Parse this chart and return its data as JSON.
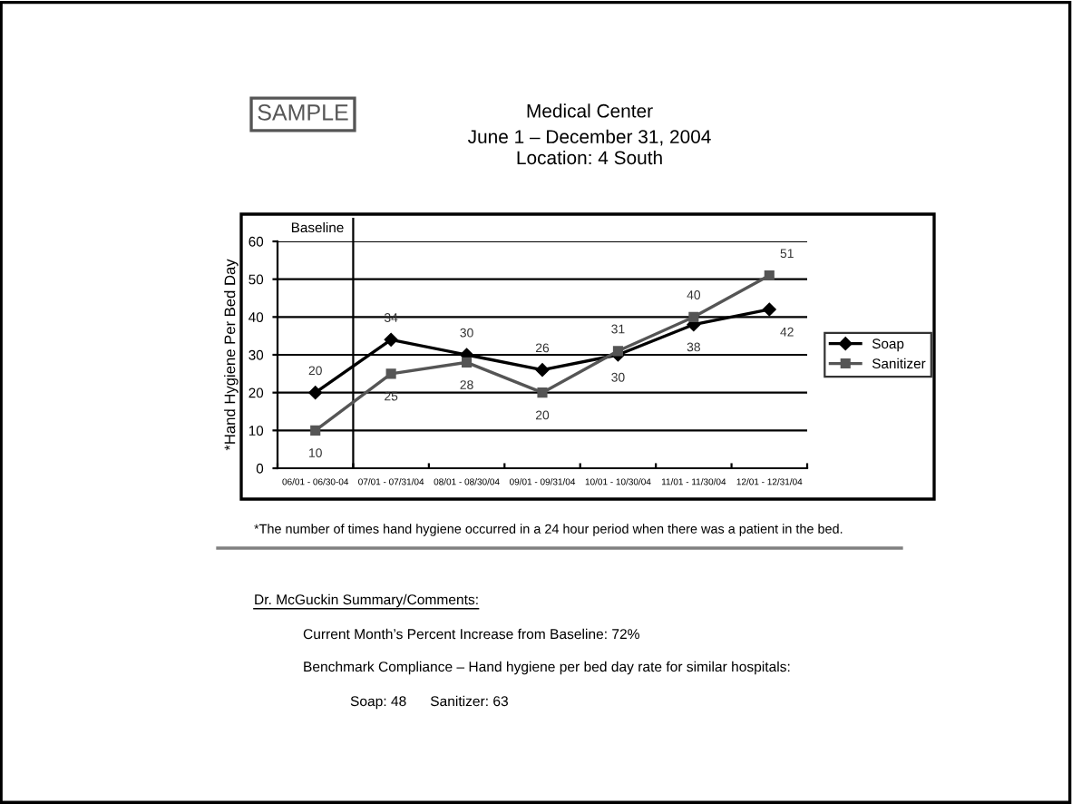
{
  "chart_data": {
    "type": "line",
    "title": "Medical Center",
    "subtitle": "June 1 – December 31, 2004\nLocation: 4 South",
    "ylabel": "*Hand Hygiene Per Bed Day",
    "categories": [
      "06/01 - 06/30-04",
      "07/01 - 07/31/04",
      "08/01 - 08/30/04",
      "09/01 - 09/31/04",
      "10/01 - 10/30/04",
      "11/01 - 11/30/04",
      "12/01 - 12/31/04"
    ],
    "series": [
      {
        "name": "Soap",
        "color": "#000000",
        "marker": "diamond",
        "values": [
          20,
          34,
          30,
          26,
          30,
          38,
          42
        ]
      },
      {
        "name": "Sanitizer",
        "color": "#555555",
        "marker": "square",
        "values": [
          10,
          25,
          28,
          20,
          31,
          40,
          51
        ]
      }
    ],
    "ylim": [
      0,
      60
    ],
    "yticks": [
      0,
      10,
      20,
      30,
      40,
      50,
      60
    ],
    "grid": "y",
    "legend": "right",
    "data_labels": true,
    "line_style": "solid",
    "annotations": [
      "Baseline",
      "SAMPLE",
      "*The number of times hand hygiene occurred in a 24 hour period when there was a patient in the bed.",
      "Dr. McGuckin Summary/Comments:",
      "Current Month’s Percent Increase from Baseline: 72%",
      "Benchmark Compliance – Hand hygiene per bed day rate for similar hospitals:",
      "Soap: 48      Sanitizer: 63"
    ]
  }
}
